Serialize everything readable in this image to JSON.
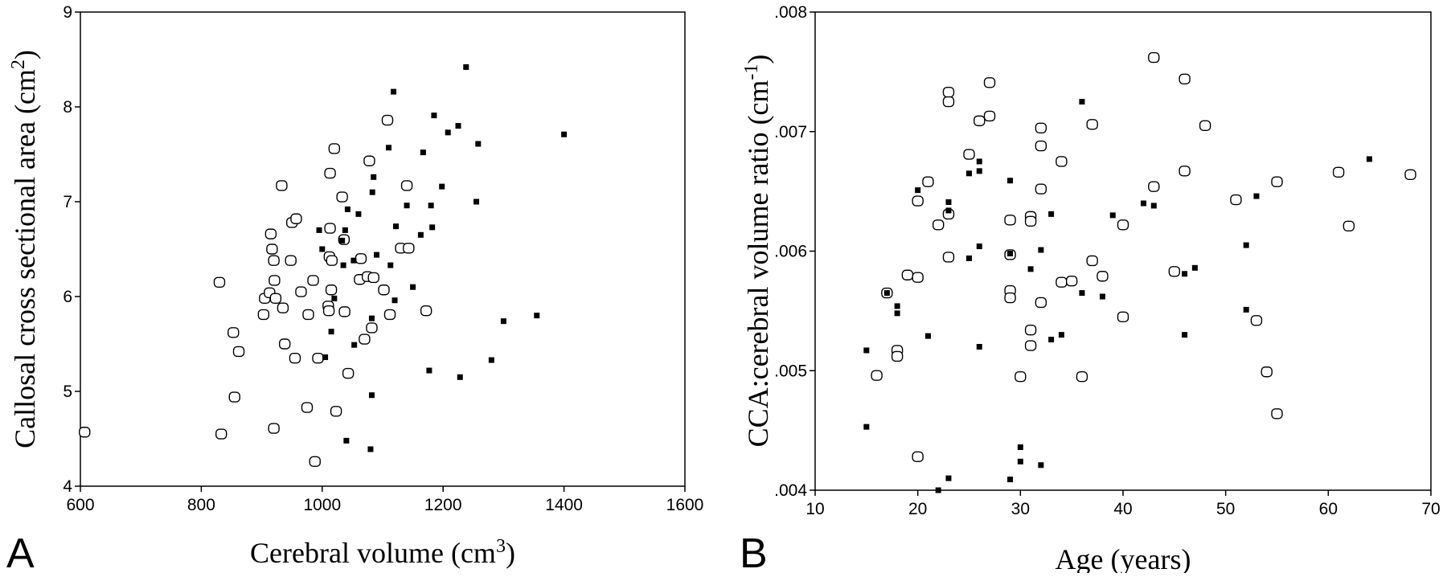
{
  "chart_data": [
    {
      "type": "scatter",
      "panel_label": "A",
      "xlabel": {
        "main": "Cerebral volume (cm",
        "sup": "3",
        "end": ")"
      },
      "ylabel": {
        "main": "Callosal cross sectional area (cm",
        "sup": "2",
        "end": ")"
      },
      "xlim": [
        600,
        1600
      ],
      "ylim": [
        4,
        9
      ],
      "xticks": [
        "600",
        "800",
        "1000",
        "1200",
        "1400",
        "1600"
      ],
      "yticks": [
        "4",
        "5",
        "6",
        "7",
        "8",
        "9"
      ],
      "grid": false,
      "series": [
        {
          "marker": "open-circle",
          "points": [
            [
              607,
              4.57
            ],
            [
              830,
              6.15
            ],
            [
              833,
              4.55
            ],
            [
              853,
              5.62
            ],
            [
              855,
              4.94
            ],
            [
              862,
              5.42
            ],
            [
              903,
              5.81
            ],
            [
              905,
              5.98
            ],
            [
              913,
              6.04
            ],
            [
              915,
              6.66
            ],
            [
              917,
              6.5
            ],
            [
              920,
              4.61
            ],
            [
              920,
              6.38
            ],
            [
              921,
              6.17
            ],
            [
              923,
              5.98
            ],
            [
              933,
              7.17
            ],
            [
              935,
              5.88
            ],
            [
              938,
              5.5
            ],
            [
              948,
              6.38
            ],
            [
              950,
              6.78
            ],
            [
              955,
              5.35
            ],
            [
              957,
              6.82
            ],
            [
              965,
              6.05
            ],
            [
              975,
              4.83
            ],
            [
              977,
              5.81
            ],
            [
              985,
              6.17
            ],
            [
              988,
              4.26
            ],
            [
              993,
              5.35
            ],
            [
              1010,
              5.9
            ],
            [
              1011,
              5.85
            ],
            [
              1012,
              6.42
            ],
            [
              1013,
              7.3
            ],
            [
              1013,
              6.72
            ],
            [
              1015,
              6.07
            ],
            [
              1016,
              6.38
            ],
            [
              1020,
              7.56
            ],
            [
              1023,
              4.79
            ],
            [
              1033,
              7.05
            ],
            [
              1036,
              6.6
            ],
            [
              1037,
              5.84
            ],
            [
              1043,
              5.19
            ],
            [
              1062,
              6.18
            ],
            [
              1064,
              6.4
            ],
            [
              1070,
              5.55
            ],
            [
              1075,
              6.21
            ],
            [
              1078,
              7.43
            ],
            [
              1082,
              5.67
            ],
            [
              1085,
              6.2
            ],
            [
              1102,
              6.07
            ],
            [
              1108,
              7.86
            ],
            [
              1112,
              5.81
            ],
            [
              1130,
              6.51
            ],
            [
              1140,
              7.17
            ],
            [
              1143,
              6.51
            ],
            [
              1172,
              5.85
            ]
          ]
        },
        {
          "marker": "filled-square",
          "points": [
            [
              995,
              6.7
            ],
            [
              1000,
              6.5
            ],
            [
              1005,
              5.36
            ],
            [
              1015,
              5.63
            ],
            [
              1020,
              5.98
            ],
            [
              1033,
              6.59
            ],
            [
              1035,
              6.33
            ],
            [
              1038,
              6.7
            ],
            [
              1040,
              4.48
            ],
            [
              1042,
              6.92
            ],
            [
              1052,
              6.38
            ],
            [
              1053,
              5.49
            ],
            [
              1060,
              6.87
            ],
            [
              1080,
              4.39
            ],
            [
              1082,
              5.77
            ],
            [
              1082,
              4.96
            ],
            [
              1083,
              7.1
            ],
            [
              1085,
              7.26
            ],
            [
              1090,
              6.44
            ],
            [
              1110,
              7.57
            ],
            [
              1113,
              6.33
            ],
            [
              1118,
              8.16
            ],
            [
              1120,
              5.96
            ],
            [
              1122,
              6.74
            ],
            [
              1140,
              6.96
            ],
            [
              1150,
              6.1
            ],
            [
              1163,
              6.65
            ],
            [
              1167,
              7.52
            ],
            [
              1177,
              5.22
            ],
            [
              1180,
              6.96
            ],
            [
              1182,
              6.73
            ],
            [
              1185,
              7.91
            ],
            [
              1198,
              7.16
            ],
            [
              1208,
              7.73
            ],
            [
              1225,
              7.8
            ],
            [
              1228,
              5.15
            ],
            [
              1238,
              8.42
            ],
            [
              1255,
              7.0
            ],
            [
              1258,
              7.61
            ],
            [
              1280,
              5.33
            ],
            [
              1300,
              5.74
            ],
            [
              1355,
              5.8
            ],
            [
              1400,
              7.71
            ]
          ]
        }
      ]
    },
    {
      "type": "scatter",
      "panel_label": "B",
      "xlabel": {
        "main": "Age (years)",
        "sup": "",
        "end": ""
      },
      "ylabel": {
        "main": "CCA:cerebral volume ratio (cm",
        "sup": "-1",
        "end": ")"
      },
      "xlim": [
        10,
        70
      ],
      "ylim": [
        0.004,
        0.008
      ],
      "xticks": [
        "10",
        "20",
        "30",
        "40",
        "50",
        "60",
        "70"
      ],
      "yticks": [
        ".004",
        ".005",
        ".006",
        ".007",
        ".008"
      ],
      "grid": false,
      "series": [
        {
          "marker": "open-circle",
          "points": [
            [
              16,
              0.00496
            ],
            [
              17,
              0.00565
            ],
            [
              18,
              0.00517
            ],
            [
              18,
              0.00512
            ],
            [
              19,
              0.0058
            ],
            [
              20,
              0.00578
            ],
            [
              20,
              0.00642
            ],
            [
              20,
              0.00428
            ],
            [
              21,
              0.00658
            ],
            [
              22,
              0.00622
            ],
            [
              23,
              0.00733
            ],
            [
              23,
              0.00725
            ],
            [
              23,
              0.00631
            ],
            [
              23,
              0.00595
            ],
            [
              25,
              0.00681
            ],
            [
              26,
              0.00709
            ],
            [
              27,
              0.00741
            ],
            [
              27,
              0.00713
            ],
            [
              29,
              0.00626
            ],
            [
              29,
              0.00597
            ],
            [
              29,
              0.00567
            ],
            [
              29,
              0.00561
            ],
            [
              30,
              0.00495
            ],
            [
              31,
              0.00629
            ],
            [
              31,
              0.00625
            ],
            [
              31,
              0.00534
            ],
            [
              31,
              0.00521
            ],
            [
              32,
              0.00703
            ],
            [
              32,
              0.00688
            ],
            [
              32,
              0.00652
            ],
            [
              32,
              0.00557
            ],
            [
              34,
              0.00574
            ],
            [
              34,
              0.00675
            ],
            [
              35,
              0.00575
            ],
            [
              36,
              0.00495
            ],
            [
              37,
              0.00706
            ],
            [
              37,
              0.00592
            ],
            [
              38,
              0.00579
            ],
            [
              40,
              0.00622
            ],
            [
              40,
              0.00545
            ],
            [
              43,
              0.00762
            ],
            [
              43,
              0.00654
            ],
            [
              45,
              0.00583
            ],
            [
              46,
              0.00744
            ],
            [
              46,
              0.00667
            ],
            [
              48,
              0.00705
            ],
            [
              51,
              0.00643
            ],
            [
              53,
              0.00542
            ],
            [
              54,
              0.00499
            ],
            [
              55,
              0.00658
            ],
            [
              55,
              0.00464
            ],
            [
              61,
              0.00666
            ],
            [
              62,
              0.00621
            ],
            [
              68,
              0.00664
            ]
          ]
        },
        {
          "marker": "filled-square",
          "points": [
            [
              15,
              0.00517
            ],
            [
              15,
              0.00453
            ],
            [
              17,
              0.00565
            ],
            [
              18,
              0.00548
            ],
            [
              18,
              0.00554
            ],
            [
              20,
              0.00651
            ],
            [
              21,
              0.00529
            ],
            [
              22,
              0.004
            ],
            [
              23,
              0.00641
            ],
            [
              23,
              0.00634
            ],
            [
              23,
              0.0041
            ],
            [
              25,
              0.00665
            ],
            [
              25,
              0.00594
            ],
            [
              26,
              0.00675
            ],
            [
              26,
              0.00667
            ],
            [
              26,
              0.00604
            ],
            [
              26,
              0.0052
            ],
            [
              29,
              0.00659
            ],
            [
              29,
              0.00598
            ],
            [
              29,
              0.00409
            ],
            [
              30,
              0.00436
            ],
            [
              30,
              0.00424
            ],
            [
              31,
              0.00585
            ],
            [
              32,
              0.00601
            ],
            [
              32,
              0.00421
            ],
            [
              33,
              0.00631
            ],
            [
              33,
              0.00526
            ],
            [
              34,
              0.0053
            ],
            [
              36,
              0.00725
            ],
            [
              36,
              0.00565
            ],
            [
              38,
              0.00562
            ],
            [
              39,
              0.0063
            ],
            [
              42,
              0.0064
            ],
            [
              43,
              0.00638
            ],
            [
              46,
              0.00581
            ],
            [
              46,
              0.0053
            ],
            [
              47,
              0.00586
            ],
            [
              52,
              0.00605
            ],
            [
              52,
              0.00551
            ],
            [
              53,
              0.00646
            ],
            [
              64,
              0.00677
            ]
          ]
        }
      ]
    }
  ]
}
